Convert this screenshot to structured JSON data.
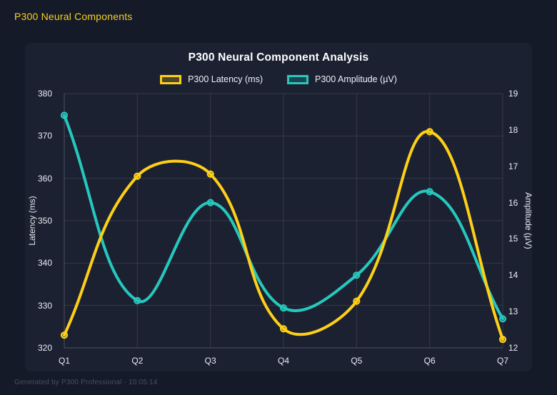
{
  "app": {
    "header_title": "P300 Neural Components",
    "footer_text": "Generated by P300 Professional - 10:05:14"
  },
  "chart_data": {
    "type": "line",
    "title": "P300 Neural Component Analysis",
    "categories": [
      "Q1",
      "Q2",
      "Q3",
      "Q4",
      "Q5",
      "Q6",
      "Q7"
    ],
    "series": [
      {
        "name": "P300 Latency (ms)",
        "axis": "left",
        "color": "#fdd017",
        "values": [
          323,
          360.5,
          361,
          324.5,
          331,
          371,
          322
        ]
      },
      {
        "name": "P300 Amplitude (µV)",
        "axis": "right",
        "color": "#26c8bd",
        "values": [
          18.4,
          13.3,
          16.0,
          13.1,
          14.0,
          16.3,
          12.8
        ]
      }
    ],
    "axes": {
      "left": {
        "label": "Latency (ms)",
        "min": 320,
        "max": 380,
        "ticks": [
          380,
          370,
          360,
          350,
          340,
          330,
          320
        ]
      },
      "right": {
        "label": "Amplitude (µV)",
        "min": 12,
        "max": 19,
        "ticks": [
          19,
          18,
          17,
          16,
          15,
          14,
          13,
          12
        ]
      }
    },
    "legend_position": "top",
    "grid": true,
    "line_tension": 0.4,
    "marker_style": "circle"
  },
  "colors": {
    "page_bg": "#151a28",
    "panel_bg": "#1c2132",
    "grid": "rgba(255,255,255,0.10)",
    "axis_border": "rgba(255,255,255,0.22)",
    "header_text": "#f8d020",
    "footer_text": "#464e63",
    "title_text": "#ffffff",
    "tick_text": "#e9ecf2"
  }
}
